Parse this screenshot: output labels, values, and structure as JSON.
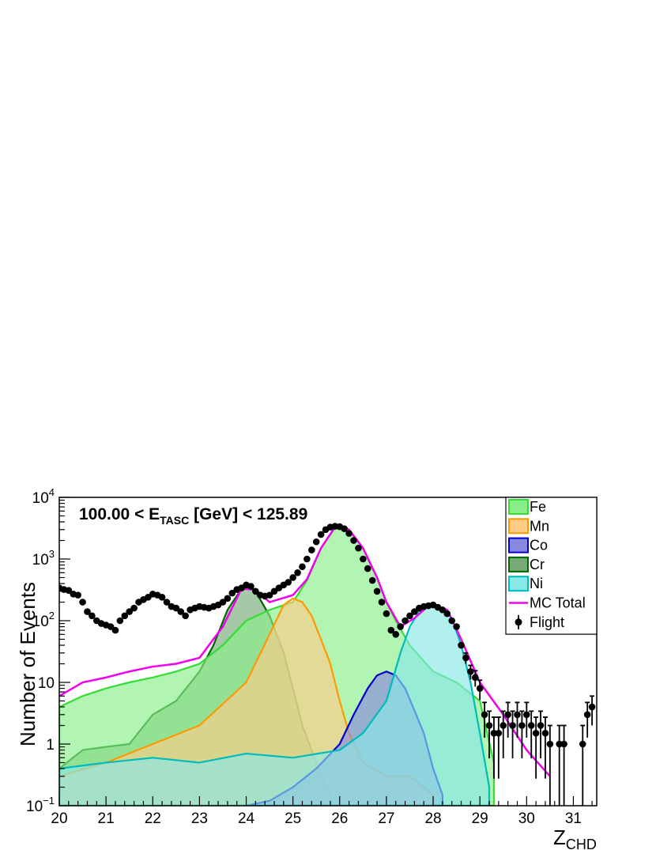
{
  "chart_data": {
    "type": "bar",
    "scale": "log",
    "title": "",
    "xlabel": {
      "main": "Z",
      "sub": "CHD"
    },
    "ylabel": "Number of Events",
    "annotation": {
      "pre": "100.00 < E",
      "sub": "TASC",
      "post": " [GeV] < 125.89"
    },
    "xlim": [
      20,
      31.5
    ],
    "ylim": [
      0.1,
      10000
    ],
    "x_ticks": [
      "20",
      "21",
      "22",
      "23",
      "24",
      "25",
      "26",
      "27",
      "28",
      "29",
      "30",
      "31"
    ],
    "y_ticks": [
      {
        "value": 0.1,
        "base": "10",
        "exp": "−1"
      },
      {
        "value": 1,
        "base": "1",
        "exp": ""
      },
      {
        "value": 10,
        "base": "10",
        "exp": ""
      },
      {
        "value": 100,
        "base": "10",
        "exp": "2"
      },
      {
        "value": 1000,
        "base": "10",
        "exp": "3"
      },
      {
        "value": 10000,
        "base": "10",
        "exp": "4"
      }
    ],
    "legend_position": "top-right",
    "legend": [
      {
        "label": "Fe",
        "style": "fill",
        "color": "#33dd33",
        "fill": "#88ee88"
      },
      {
        "label": "Mn",
        "style": "fill",
        "color": "#ff9900",
        "fill": "#ffcc88"
      },
      {
        "label": "Co",
        "style": "fill",
        "color": "#0000cc",
        "fill": "#8888dd"
      },
      {
        "label": "Cr",
        "style": "fill",
        "color": "#006600",
        "fill": "#77aa77"
      },
      {
        "label": "Ni",
        "style": "fill",
        "color": "#00bbbb",
        "fill": "#88e8e8"
      },
      {
        "label": "MC Total",
        "style": "line",
        "color": "#ee00ee"
      },
      {
        "label": "Flight",
        "style": "marker",
        "color": "#000000"
      }
    ],
    "series": [
      {
        "name": "Cr",
        "color": "#006600",
        "fill": "#77aa77",
        "x": [
          20.0,
          20.5,
          21.0,
          21.5,
          22.0,
          22.5,
          23.0,
          23.3,
          23.6,
          23.9,
          24.0,
          24.2,
          24.5,
          24.8,
          25.0,
          25.2,
          25.5,
          25.8
        ],
        "values": [
          0.4,
          0.8,
          0.9,
          1.0,
          3.0,
          5.0,
          15,
          40,
          150,
          330,
          350,
          300,
          120,
          30,
          8,
          2,
          0.5,
          0.15
        ]
      },
      {
        "name": "Fe",
        "color": "#33dd33",
        "fill": "#88ee88",
        "x": [
          20.0,
          20.5,
          21.0,
          21.5,
          22.0,
          22.5,
          23.0,
          23.5,
          24.0,
          24.5,
          25.0,
          25.3,
          25.6,
          25.9,
          26.0,
          26.2,
          26.5,
          26.8,
          27.0,
          27.2,
          27.5,
          28.0,
          28.5,
          29.0,
          29.3
        ],
        "values": [
          4,
          6,
          8,
          10,
          12,
          15,
          20,
          40,
          100,
          150,
          200,
          450,
          1500,
          3200,
          3400,
          3000,
          1500,
          500,
          200,
          100,
          40,
          15,
          10,
          5,
          0.5
        ]
      },
      {
        "name": "Mn",
        "color": "#ff9900",
        "fill": "#ffcc88",
        "x": [
          20.0,
          21.0,
          22.0,
          23.0,
          24.0,
          24.5,
          24.8,
          25.0,
          25.2,
          25.4,
          25.6,
          25.8,
          26.0,
          26.2,
          26.5,
          27.0,
          27.5,
          28.0
        ],
        "values": [
          0.3,
          0.5,
          1.0,
          2.0,
          10,
          60,
          180,
          230,
          200,
          120,
          50,
          20,
          5,
          1.5,
          0.5,
          0.3,
          0.3,
          0.15
        ]
      },
      {
        "name": "Co",
        "color": "#0000cc",
        "fill": "#8888dd",
        "x": [
          24.0,
          24.5,
          25.0,
          25.5,
          26.0,
          26.3,
          26.6,
          26.8,
          27.0,
          27.2,
          27.4,
          27.6,
          27.8,
          28.0,
          28.2
        ],
        "values": [
          0.1,
          0.12,
          0.2,
          0.4,
          1.0,
          3.0,
          8.0,
          13,
          15,
          13,
          8.0,
          3.5,
          1.5,
          0.4,
          0.15
        ]
      },
      {
        "name": "Ni",
        "color": "#00bbbb",
        "fill": "#88e8e8",
        "x": [
          20.0,
          21.0,
          22.0,
          23.0,
          24.0,
          25.0,
          26.0,
          26.5,
          27.0,
          27.3,
          27.5,
          27.7,
          27.9,
          28.0,
          28.2,
          28.4,
          28.6,
          28.8,
          29.0,
          29.2
        ],
        "values": [
          0.4,
          0.5,
          0.6,
          0.5,
          0.7,
          0.6,
          0.8,
          1.5,
          5.0,
          30,
          80,
          140,
          170,
          175,
          160,
          110,
          40,
          10,
          1.5,
          0.2
        ]
      },
      {
        "name": "MC Total",
        "color": "#ee00ee",
        "x": [
          20.0,
          20.5,
          21.0,
          21.5,
          22.0,
          22.5,
          23.0,
          23.5,
          23.9,
          24.2,
          24.5,
          25.0,
          25.3,
          25.6,
          25.9,
          26.0,
          26.2,
          26.5,
          26.8,
          27.0,
          27.3,
          27.6,
          27.9,
          28.0,
          28.3,
          28.6,
          29.0,
          29.5,
          30.0,
          30.5
        ],
        "values": [
          6,
          10,
          12,
          15,
          18,
          20,
          25,
          80,
          330,
          320,
          200,
          260,
          470,
          1500,
          3300,
          3450,
          3000,
          1500,
          500,
          200,
          80,
          110,
          175,
          180,
          150,
          50,
          10,
          3,
          0.8,
          0.3
        ]
      },
      {
        "name": "Flight",
        "color": "#000000",
        "x": [
          20.0,
          20.1,
          20.2,
          20.3,
          20.4,
          20.5,
          20.6,
          20.7,
          20.8,
          20.9,
          21.0,
          21.1,
          21.2,
          21.3,
          21.4,
          21.5,
          21.6,
          21.7,
          21.8,
          21.9,
          22.0,
          22.1,
          22.2,
          22.3,
          22.4,
          22.5,
          22.6,
          22.7,
          22.8,
          22.9,
          23.0,
          23.1,
          23.2,
          23.3,
          23.4,
          23.5,
          23.6,
          23.7,
          23.8,
          23.9,
          24.0,
          24.1,
          24.2,
          24.3,
          24.4,
          24.5,
          24.6,
          24.7,
          24.8,
          24.9,
          25.0,
          25.1,
          25.2,
          25.3,
          25.4,
          25.5,
          25.6,
          25.7,
          25.8,
          25.9,
          26.0,
          26.1,
          26.2,
          26.3,
          26.4,
          26.5,
          26.6,
          26.7,
          26.8,
          26.9,
          27.0,
          27.1,
          27.2,
          27.3,
          27.4,
          27.5,
          27.6,
          27.7,
          27.8,
          27.9,
          28.0,
          28.1,
          28.2,
          28.3,
          28.4,
          28.5,
          28.6,
          28.7,
          28.8,
          28.9,
          29.0,
          29.1,
          29.2,
          29.3,
          29.4,
          29.5,
          29.6,
          29.7,
          29.8,
          29.9,
          30.0,
          30.1,
          30.2,
          30.3,
          30.4,
          30.5,
          30.7,
          30.8,
          31.2,
          31.3,
          31.4
        ],
        "values": [
          340,
          320,
          310,
          270,
          260,
          200,
          140,
          120,
          100,
          90,
          85,
          80,
          70,
          100,
          120,
          140,
          160,
          200,
          220,
          240,
          270,
          260,
          240,
          200,
          170,
          160,
          140,
          120,
          150,
          160,
          170,
          165,
          160,
          170,
          180,
          200,
          230,
          280,
          320,
          340,
          380,
          360,
          300,
          260,
          250,
          260,
          300,
          340,
          380,
          420,
          500,
          600,
          750,
          1000,
          1400,
          1900,
          2500,
          3000,
          3300,
          3400,
          3350,
          3100,
          2600,
          2000,
          1500,
          1000,
          700,
          450,
          300,
          200,
          130,
          70,
          60,
          80,
          100,
          120,
          140,
          160,
          170,
          175,
          180,
          165,
          150,
          130,
          100,
          80,
          40,
          25,
          15,
          12,
          8,
          3,
          2,
          1.5,
          1.5,
          2,
          3,
          2,
          3,
          2,
          3,
          2,
          1.5,
          2,
          1.5,
          1,
          1,
          1,
          1,
          3,
          4
        ]
      }
    ]
  }
}
